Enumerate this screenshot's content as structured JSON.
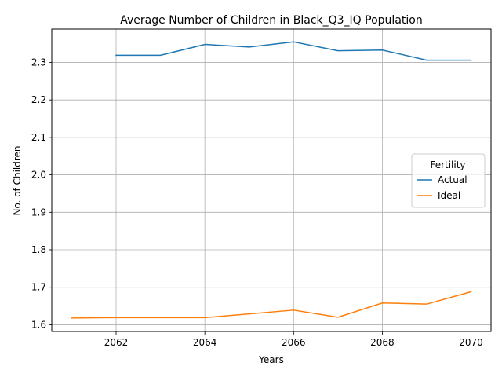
{
  "chart_data": {
    "type": "line",
    "title": "Average Number of Children in Black_Q3_IQ Population",
    "xlabel": "Years",
    "ylabel": "No. of Children",
    "xlim": [
      2060.55,
      2070.45
    ],
    "ylim": [
      1.582,
      2.389
    ],
    "xticks": [
      2062,
      2064,
      2066,
      2068,
      2070
    ],
    "yticks": [
      1.6,
      1.7,
      1.8,
      1.9,
      2.0,
      2.1,
      2.2,
      2.3
    ],
    "ytick_labels": [
      "1.6",
      "1.7",
      "1.8",
      "1.9",
      "2.0",
      "2.1",
      "2.2",
      "2.3"
    ],
    "grid": "x-major and y-major",
    "legend": {
      "title": "Fertility",
      "placement": "center-right"
    },
    "series": [
      {
        "name": "Actual",
        "color": "#1f77b4",
        "x": [
          2062,
          2063,
          2064,
          2065,
          2066,
          2067,
          2068,
          2069,
          2070
        ],
        "y": [
          2.319,
          2.319,
          2.348,
          2.341,
          2.355,
          2.331,
          2.333,
          2.306,
          2.306
        ]
      },
      {
        "name": "Ideal",
        "color": "#ff7f0e",
        "x": [
          2061,
          2062,
          2063,
          2064,
          2065,
          2066,
          2067,
          2068,
          2069,
          2070
        ],
        "y": [
          1.618,
          1.619,
          1.619,
          1.619,
          1.629,
          1.639,
          1.62,
          1.658,
          1.655,
          1.688
        ]
      }
    ]
  }
}
